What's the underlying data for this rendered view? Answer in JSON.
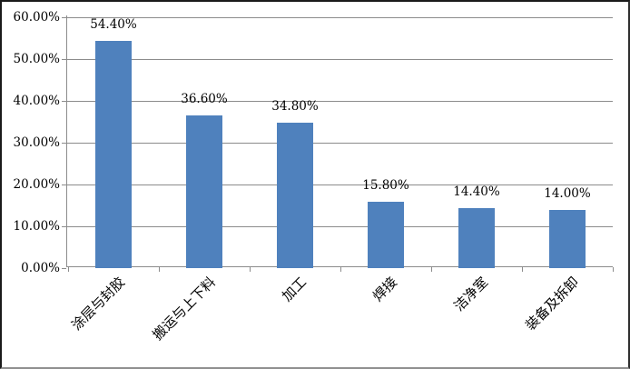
{
  "chart_data": {
    "type": "bar",
    "title": "",
    "xlabel": "",
    "ylabel": "",
    "categories": [
      "涂层与封胶",
      "搬运与上下料",
      "加工",
      "焊接",
      "洁净室",
      "装备及拆卸"
    ],
    "values": [
      54.4,
      36.6,
      34.8,
      15.8,
      14.4,
      14.0
    ],
    "value_labels": [
      "54.40%",
      "36.60%",
      "34.80%",
      "15.80%",
      "14.40%",
      "14.00%"
    ],
    "y_ticks": [
      "0.00%",
      "10.00%",
      "20.00%",
      "30.00%",
      "40.00%",
      "50.00%",
      "60.00%"
    ],
    "ylim": [
      0,
      60
    ],
    "grid": true,
    "legend": false,
    "category_rotation_deg": 45,
    "colors": {
      "bar": "#4F81BD",
      "gridline": "#8C8C8C",
      "axis": "#8C8C8C",
      "text": "#000000",
      "background": "#FFFFFF"
    }
  }
}
